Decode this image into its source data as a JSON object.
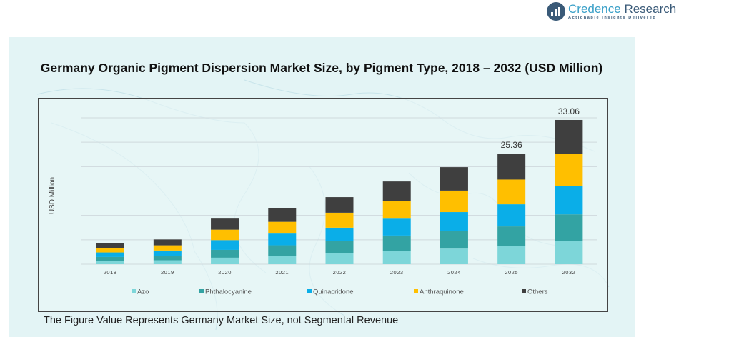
{
  "brand": {
    "name_part1": "Credence",
    "name_part2": " Research",
    "tagline": "Actionable Insights Delivered"
  },
  "footnote": "The Figure Value Represents Germany Market Size, not Segmental Revenue",
  "chart_data": {
    "type": "bar",
    "stacked": true,
    "title": "Germany Organic Pigment Dispersion Market Size, by Pigment Type, 2018 – 2032 (USD Million)",
    "xlabel": "",
    "ylabel": "USD Million",
    "categories": [
      "2018",
      "2019",
      "2020",
      "2021",
      "2022",
      "2023",
      "2024",
      "2025",
      "2032"
    ],
    "series": [
      {
        "name": "Azo",
        "color": "#7dd6d9",
        "values": [
          0.75,
          0.9,
          1.49,
          1.94,
          2.54,
          2.98,
          3.58,
          4.18,
          5.36
        ]
      },
      {
        "name": "Phthalocyanine",
        "color": "#33a3a3",
        "values": [
          0.9,
          1.04,
          1.79,
          2.39,
          2.84,
          3.58,
          4.03,
          4.48,
          6.06
        ]
      },
      {
        "name": "Quinacridone",
        "color": "#0aaee8",
        "values": [
          1.04,
          1.19,
          2.24,
          2.69,
          2.99,
          3.88,
          4.33,
          5.07,
          6.58
        ]
      },
      {
        "name": "Anthraquinone",
        "color": "#ffbf00",
        "values": [
          1.04,
          1.19,
          2.39,
          2.69,
          3.43,
          4.03,
          4.93,
          5.67,
          7.27
        ]
      },
      {
        "name": "Others",
        "color": "#3f3f3f",
        "values": [
          1.05,
          1.35,
          2.54,
          3.13,
          3.57,
          4.49,
          5.37,
          5.96,
          7.79
        ]
      }
    ],
    "data_labels": {
      "2025": "25.36",
      "2032": "33.06"
    },
    "totals": [
      4.78,
      5.67,
      10.45,
      12.84,
      15.37,
      18.96,
      22.24,
      25.36,
      33.06
    ],
    "ylim": [
      0,
      36
    ],
    "grid": true,
    "legend": "bottom"
  }
}
